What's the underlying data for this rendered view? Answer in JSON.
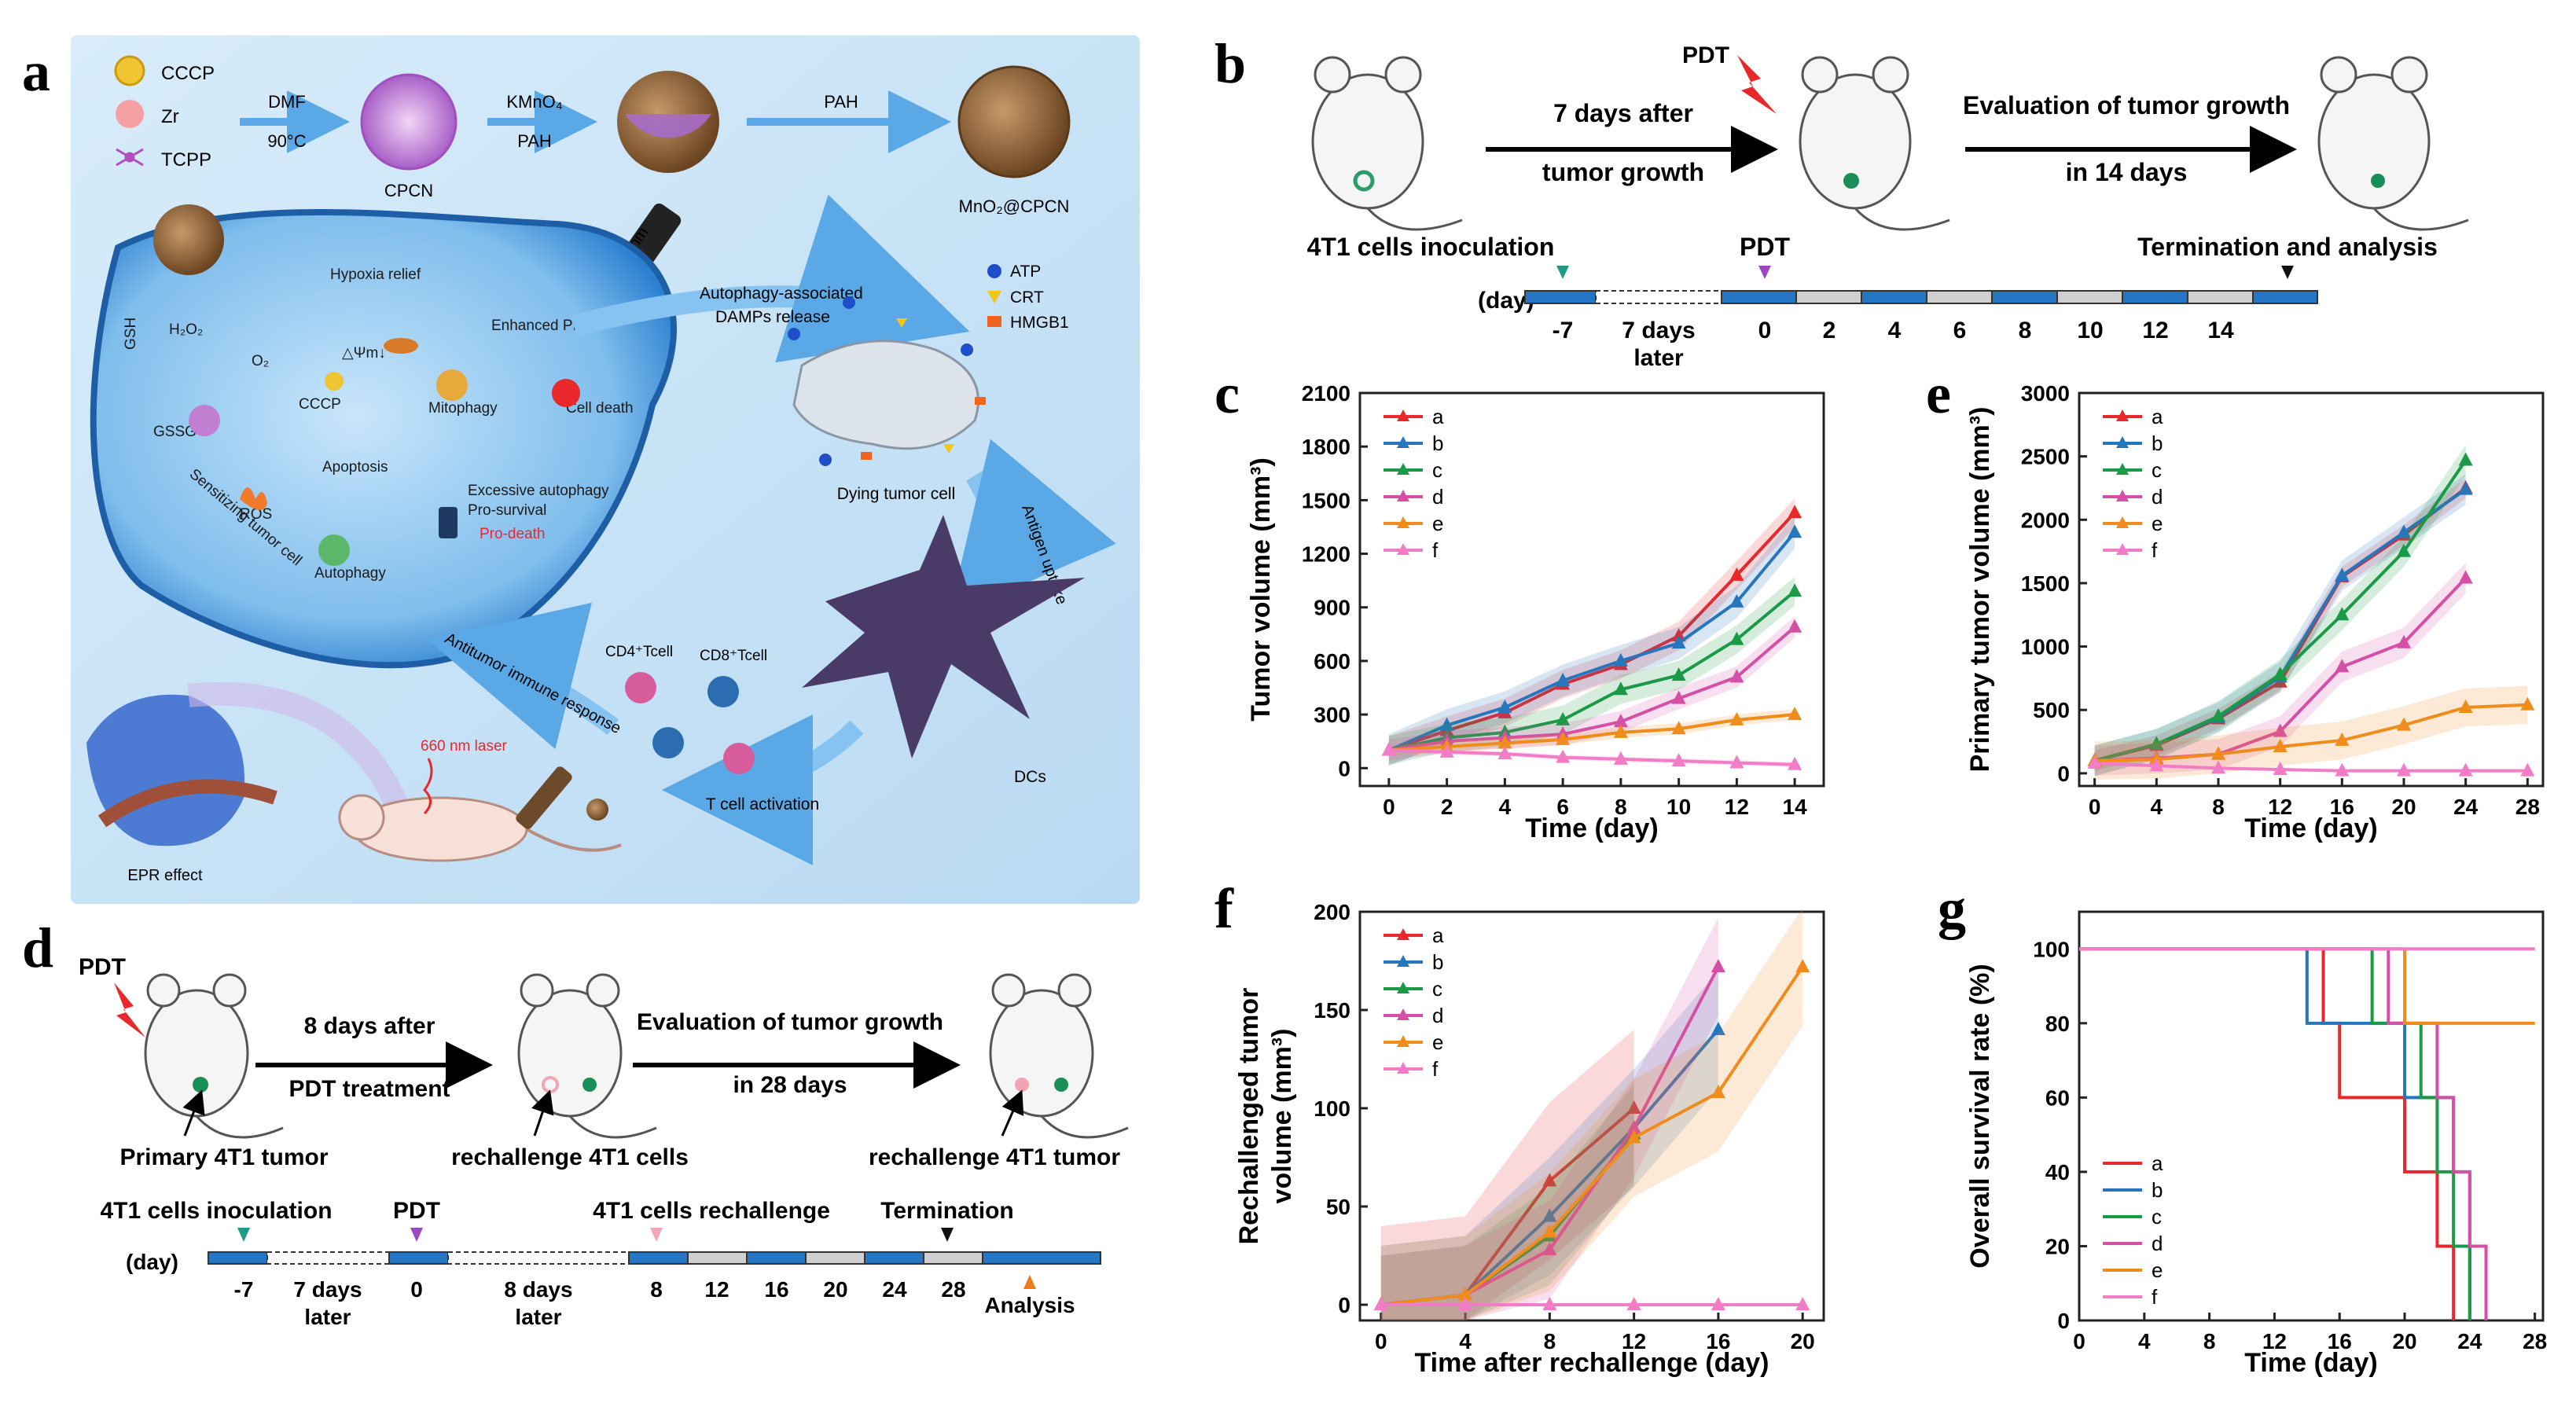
{
  "panel_letters": {
    "a": "a",
    "b": "b",
    "c": "c",
    "d": "d",
    "e": "e",
    "f": "f",
    "g": "g"
  },
  "panel_a": {
    "legend": [
      "CCCP",
      "Zr",
      "TCPP"
    ],
    "step1_top": "DMF",
    "step1_bottom": "90°C",
    "cpcn": "CPCN",
    "step2_top": "KMnO₄",
    "step2_bottom": "PAH",
    "step3_top": "PAH",
    "product": "MnO₂@CPCN",
    "laser": "660nm",
    "cell_labels": [
      "Hypoxia relief",
      "Enhanced PDT",
      "O₂",
      "GSH",
      "H₂O₂",
      "△Ψm↓",
      "CCCP",
      "Mitophagy",
      "Cell death",
      "GSSG",
      "Apoptosis",
      "ROS",
      "Excessive autophagy",
      "Pro-survival",
      "Pro-death",
      "Autophagy",
      "Sensitizing tumor cell"
    ],
    "damp_arrow": [
      "Autophagy-associated",
      "DAMPs release"
    ],
    "damp_legend": [
      "ATP",
      "CRT",
      "HMGB1"
    ],
    "dying": "Dying tumor cell",
    "antigen": "Antigen uptake",
    "dcs": "DCs",
    "tcell_act": "T cell activation",
    "cd4": "CD4⁺Tcell",
    "cd8": "CD8⁺Tcell",
    "antitumor": "Antitumor immune response",
    "laser2": "660 nm laser",
    "epr": "EPR effect",
    "colors": {
      "bg": "#cfe6f7",
      "cell": "#2b7fd0",
      "arrow": "#6fb8ee",
      "dc": "#4a3a68"
    }
  },
  "panel_b": {
    "pdt": "PDT",
    "arrow1": [
      "7 days after",
      "tumor growth"
    ],
    "arrow2": [
      "Evaluation of tumor growth",
      "in 14 days"
    ],
    "timeline_top": [
      "4T1 cells inoculation",
      "PDT",
      "Termination and analysis"
    ],
    "day_label": "(day)",
    "ticks": [
      "-7",
      "0",
      "2",
      "4",
      "6",
      "8",
      "10",
      "12",
      "14"
    ],
    "gap_label": [
      "7 days",
      "later"
    ]
  },
  "panel_d": {
    "pdt": "PDT",
    "arrow1": [
      "8 days after",
      "PDT treatment"
    ],
    "arrow2": [
      "Evaluation of tumor growth",
      "in 28 days"
    ],
    "mouse_labels": [
      "Primary 4T1 tumor",
      "rechallenge 4T1 cells",
      "rechallenge 4T1 tumor"
    ],
    "timeline_top": [
      "4T1 cells inoculation",
      "PDT",
      "4T1 cells rechallenge",
      "Termination"
    ],
    "day_label": "(day)",
    "ticks": [
      "-7",
      "0",
      "8",
      "12",
      "16",
      "20",
      "24",
      "28"
    ],
    "gap1": [
      "7 days",
      "later"
    ],
    "gap2": [
      "8 days",
      "later"
    ],
    "analysis": "Analysis"
  },
  "chart_data": [
    {
      "id": "c",
      "type": "line",
      "xlabel": "Time (day)",
      "ylabel": "Tumor volume (mm³)",
      "xlim": [
        -1,
        15
      ],
      "ylim": [
        -100,
        2100
      ],
      "xticks": [
        0,
        2,
        4,
        6,
        8,
        10,
        12,
        14
      ],
      "yticks": [
        0,
        300,
        600,
        900,
        1200,
        1500,
        1800,
        2100
      ],
      "legend": "top-left",
      "series": [
        {
          "name": "a",
          "color": "#e8282b",
          "x": [
            0,
            2,
            4,
            6,
            8,
            10,
            12,
            14
          ],
          "y": [
            100,
            210,
            310,
            470,
            580,
            740,
            1080,
            1430
          ],
          "band": 80
        },
        {
          "name": "b",
          "color": "#2676bd",
          "x": [
            0,
            2,
            4,
            6,
            8,
            10,
            12,
            14
          ],
          "y": [
            100,
            240,
            340,
            490,
            600,
            700,
            930,
            1320
          ],
          "band": 90
        },
        {
          "name": "c",
          "color": "#1a9a47",
          "x": [
            0,
            2,
            4,
            6,
            8,
            10,
            12,
            14
          ],
          "y": [
            100,
            170,
            200,
            270,
            440,
            520,
            720,
            990
          ],
          "band": 80
        },
        {
          "name": "d",
          "color": "#d64fa7",
          "x": [
            0,
            2,
            4,
            6,
            8,
            10,
            12,
            14
          ],
          "y": [
            100,
            150,
            170,
            190,
            260,
            390,
            510,
            790
          ],
          "band": 60
        },
        {
          "name": "e",
          "color": "#f08c1c",
          "x": [
            0,
            2,
            4,
            6,
            8,
            10,
            12,
            14
          ],
          "y": [
            100,
            120,
            140,
            160,
            200,
            220,
            270,
            300
          ],
          "band": 30
        },
        {
          "name": "f",
          "color": "#f27dc6",
          "x": [
            0,
            2,
            4,
            6,
            8,
            10,
            12,
            14
          ],
          "y": [
            100,
            90,
            80,
            60,
            50,
            40,
            30,
            20
          ],
          "band": 15
        }
      ]
    },
    {
      "id": "e",
      "type": "line",
      "xlabel": "Time (day)",
      "ylabel": "Primary tumor volume (mm³)",
      "xlim": [
        -1,
        29
      ],
      "ylim": [
        -100,
        3000
      ],
      "xticks": [
        0,
        4,
        8,
        12,
        16,
        20,
        24,
        28
      ],
      "yticks": [
        0,
        500,
        1000,
        1500,
        2000,
        2500,
        3000
      ],
      "legend": "top-left",
      "series": [
        {
          "name": "a",
          "color": "#e8282b",
          "x": [
            0,
            4,
            8,
            12,
            16,
            20,
            24
          ],
          "y": [
            100,
            220,
            430,
            720,
            1550,
            1880,
            2250
          ],
          "band": 80
        },
        {
          "name": "b",
          "color": "#2676bd",
          "x": [
            0,
            4,
            8,
            12,
            16,
            20,
            24
          ],
          "y": [
            100,
            230,
            440,
            760,
            1560,
            1900,
            2240
          ],
          "band": 120
        },
        {
          "name": "c",
          "color": "#1a9a47",
          "x": [
            0,
            4,
            8,
            12,
            16,
            20,
            24
          ],
          "y": [
            100,
            230,
            450,
            780,
            1250,
            1750,
            2470
          ],
          "band": 120
        },
        {
          "name": "d",
          "color": "#d64fa7",
          "x": [
            0,
            4,
            8,
            12,
            16,
            20,
            24
          ],
          "y": [
            100,
            120,
            150,
            330,
            840,
            1030,
            1540
          ],
          "band": 120
        },
        {
          "name": "e",
          "color": "#f08c1c",
          "x": [
            0,
            4,
            8,
            12,
            16,
            20,
            24,
            28
          ],
          "y": [
            100,
            110,
            150,
            210,
            260,
            380,
            520,
            540
          ],
          "band": 150
        },
        {
          "name": "f",
          "color": "#f27dc6",
          "x": [
            0,
            4,
            8,
            12,
            16,
            20,
            24,
            28
          ],
          "y": [
            80,
            60,
            40,
            30,
            20,
            20,
            20,
            20
          ],
          "band": 10
        }
      ]
    },
    {
      "id": "f",
      "type": "line",
      "xlabel": "Time after rechallenge (day)",
      "ylabel": "Rechallenged tumor volume (mm³)",
      "ylabel_lines": [
        "Rechallenged tumor",
        "volume (mm³)"
      ],
      "xlim": [
        -1,
        21
      ],
      "ylim": [
        -8,
        200
      ],
      "xticks": [
        0,
        4,
        8,
        12,
        16,
        20
      ],
      "yticks": [
        0,
        50,
        100,
        150,
        200
      ],
      "legend": "top-left",
      "series": [
        {
          "name": "a",
          "color": "#e8282b",
          "x": [
            0,
            4,
            8,
            12
          ],
          "y": [
            0,
            5,
            63,
            100
          ],
          "band": 40
        },
        {
          "name": "b",
          "color": "#2676bd",
          "x": [
            0,
            4,
            8,
            12,
            16
          ],
          "y": [
            0,
            5,
            45,
            90,
            140
          ],
          "band": 30
        },
        {
          "name": "c",
          "color": "#1a9a47",
          "x": [
            0,
            4,
            8,
            12
          ],
          "y": [
            0,
            5,
            35,
            87
          ],
          "band": 25
        },
        {
          "name": "d",
          "color": "#d64fa7",
          "x": [
            0,
            4,
            8,
            12,
            16
          ],
          "y": [
            0,
            5,
            28,
            90,
            172
          ],
          "band": 25
        },
        {
          "name": "e",
          "color": "#f08c1c",
          "x": [
            0,
            4,
            8,
            12,
            16,
            20
          ],
          "y": [
            0,
            5,
            37,
            85,
            108,
            172
          ],
          "band": 30
        },
        {
          "name": "f",
          "color": "#f27dc6",
          "x": [
            0,
            4,
            8,
            12,
            16,
            20
          ],
          "y": [
            0,
            0,
            0,
            0,
            0,
            0
          ],
          "band": 0
        }
      ]
    },
    {
      "id": "g",
      "type": "step",
      "xlabel": "Time (day)",
      "ylabel": "Overall survival rate (%)",
      "xlim": [
        0,
        28.5
      ],
      "ylim": [
        0,
        110
      ],
      "xticks": [
        0,
        4,
        8,
        12,
        16,
        20,
        24,
        28
      ],
      "yticks": [
        0,
        20,
        40,
        60,
        80,
        100
      ],
      "legend": "bottom-left",
      "series": [
        {
          "name": "a",
          "color": "#e8282b",
          "x": [
            0,
            15,
            16,
            20,
            22,
            23
          ],
          "y": [
            100,
            80,
            60,
            40,
            20,
            0
          ]
        },
        {
          "name": "b",
          "color": "#2676bd",
          "x": [
            0,
            14,
            20,
            21,
            23,
            24
          ],
          "y": [
            100,
            80,
            60,
            60,
            40,
            0
          ]
        },
        {
          "name": "c",
          "color": "#1a9a47",
          "x": [
            0,
            18,
            21,
            22,
            23,
            24
          ],
          "y": [
            100,
            80,
            60,
            40,
            20,
            0
          ]
        },
        {
          "name": "d",
          "color": "#d64fa7",
          "x": [
            0,
            19,
            22,
            23,
            24,
            25
          ],
          "y": [
            100,
            80,
            60,
            40,
            20,
            0
          ]
        },
        {
          "name": "e",
          "color": "#f08c1c",
          "x": [
            0,
            20,
            28
          ],
          "y": [
            100,
            80,
            80
          ]
        },
        {
          "name": "f",
          "color": "#f27dc6",
          "x": [
            0,
            28
          ],
          "y": [
            100,
            100
          ]
        }
      ]
    }
  ]
}
